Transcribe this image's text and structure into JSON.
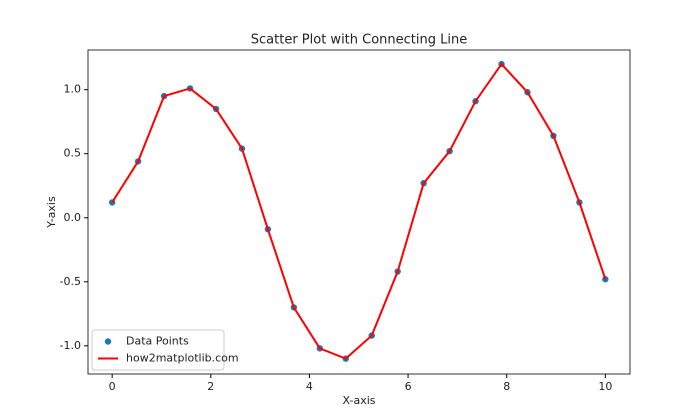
{
  "chart_data": {
    "type": "scatter-line",
    "title": "Scatter Plot with Connecting Line",
    "x_label": "X-axis",
    "y_label": "Y-axis",
    "x": [
      0,
      0.526,
      1.053,
      1.579,
      2.105,
      2.632,
      3.158,
      3.684,
      4.211,
      4.737,
      5.263,
      5.789,
      6.316,
      6.842,
      7.368,
      7.895,
      8.421,
      8.947,
      9.474,
      10
    ],
    "series": [
      {
        "name": "Data Points",
        "type": "scatter",
        "color": "#1f77b4",
        "values": [
          0.12,
          0.44,
          0.95,
          1.01,
          0.85,
          0.54,
          -0.09,
          -0.7,
          -1.02,
          -1.1,
          -0.92,
          -0.42,
          0.27,
          0.52,
          0.91,
          1.2,
          0.98,
          0.64,
          0.12,
          -0.48
        ]
      },
      {
        "name": "how2matplotlib.com",
        "type": "line",
        "color": "#ff0000",
        "values": [
          0.12,
          0.44,
          0.95,
          1.01,
          0.85,
          0.54,
          -0.09,
          -0.7,
          -1.02,
          -1.1,
          -0.92,
          -0.42,
          0.27,
          0.52,
          0.91,
          1.2,
          0.98,
          0.64,
          0.12,
          -0.48
        ]
      }
    ],
    "xlim": [
      -0.49,
      10.5
    ],
    "ylim": [
      -1.22,
      1.31
    ],
    "xticks": [
      0,
      2,
      4,
      6,
      8,
      10
    ],
    "yticks": [
      {
        "value": -1,
        "label": "-1.0"
      },
      {
        "value": -0.5,
        "label": "-0.5"
      },
      {
        "value": 0,
        "label": "0.0"
      },
      {
        "value": 0.5,
        "label": "0.5"
      },
      {
        "value": 1,
        "label": "1.0"
      }
    ],
    "legend": "lower left"
  }
}
